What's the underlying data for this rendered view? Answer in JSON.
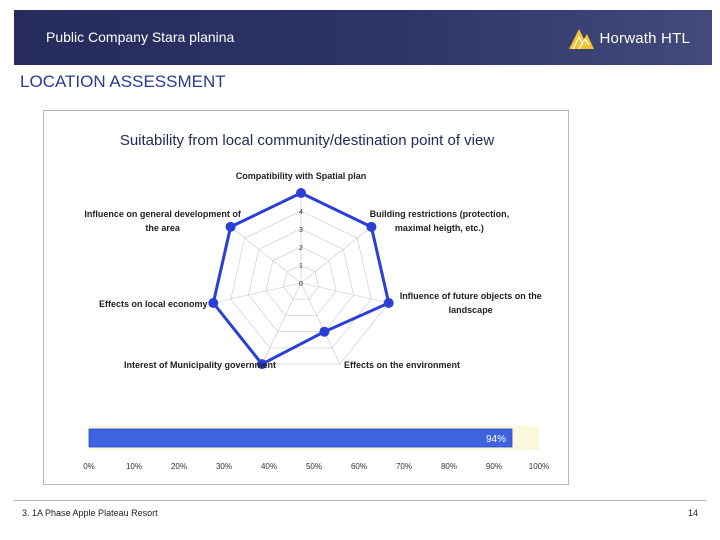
{
  "header": {
    "title": "Public Company Stara planina",
    "logo_text": "Horwath HTL"
  },
  "section_title": "LOCATION ASSESSMENT",
  "chart_data": [
    {
      "type": "radar",
      "title": "Suitability from local community/destination point of view",
      "axes": [
        {
          "label_lines": [
            "Compatibility with Spatial plan"
          ],
          "value": 5
        },
        {
          "label_lines": [
            "Building restrictions (protection,",
            "maximal heigth, etc.)"
          ],
          "value": 5
        },
        {
          "label_lines": [
            "Influence of future objects on the",
            "landscape"
          ],
          "value": 5
        },
        {
          "label_lines": [
            "Effects on the environment"
          ],
          "value": 3
        },
        {
          "label_lines": [
            "Interest of Municipality government"
          ],
          "value": 5
        },
        {
          "label_lines": [
            "Effects on local economy"
          ],
          "value": 5
        },
        {
          "label_lines": [
            "Influence on general development of",
            "the area"
          ],
          "value": 5
        }
      ],
      "rmin": 0,
      "rmax": 5,
      "ticks": [
        "0",
        "1",
        "2",
        "3",
        "4",
        "5"
      ],
      "series_color": "#2b3fd6"
    },
    {
      "type": "bar",
      "orientation": "horizontal",
      "value": 94,
      "value_label": "94%",
      "xlim": [
        0,
        100
      ],
      "xticks": [
        "0%",
        "10%",
        "20%",
        "30%",
        "40%",
        "50%",
        "60%",
        "70%",
        "80%",
        "90%",
        "100%"
      ],
      "bar_color": "#3f63e0"
    }
  ],
  "footer": {
    "left": "3. 1A Phase Apple Plateau Resort",
    "right": "14"
  }
}
